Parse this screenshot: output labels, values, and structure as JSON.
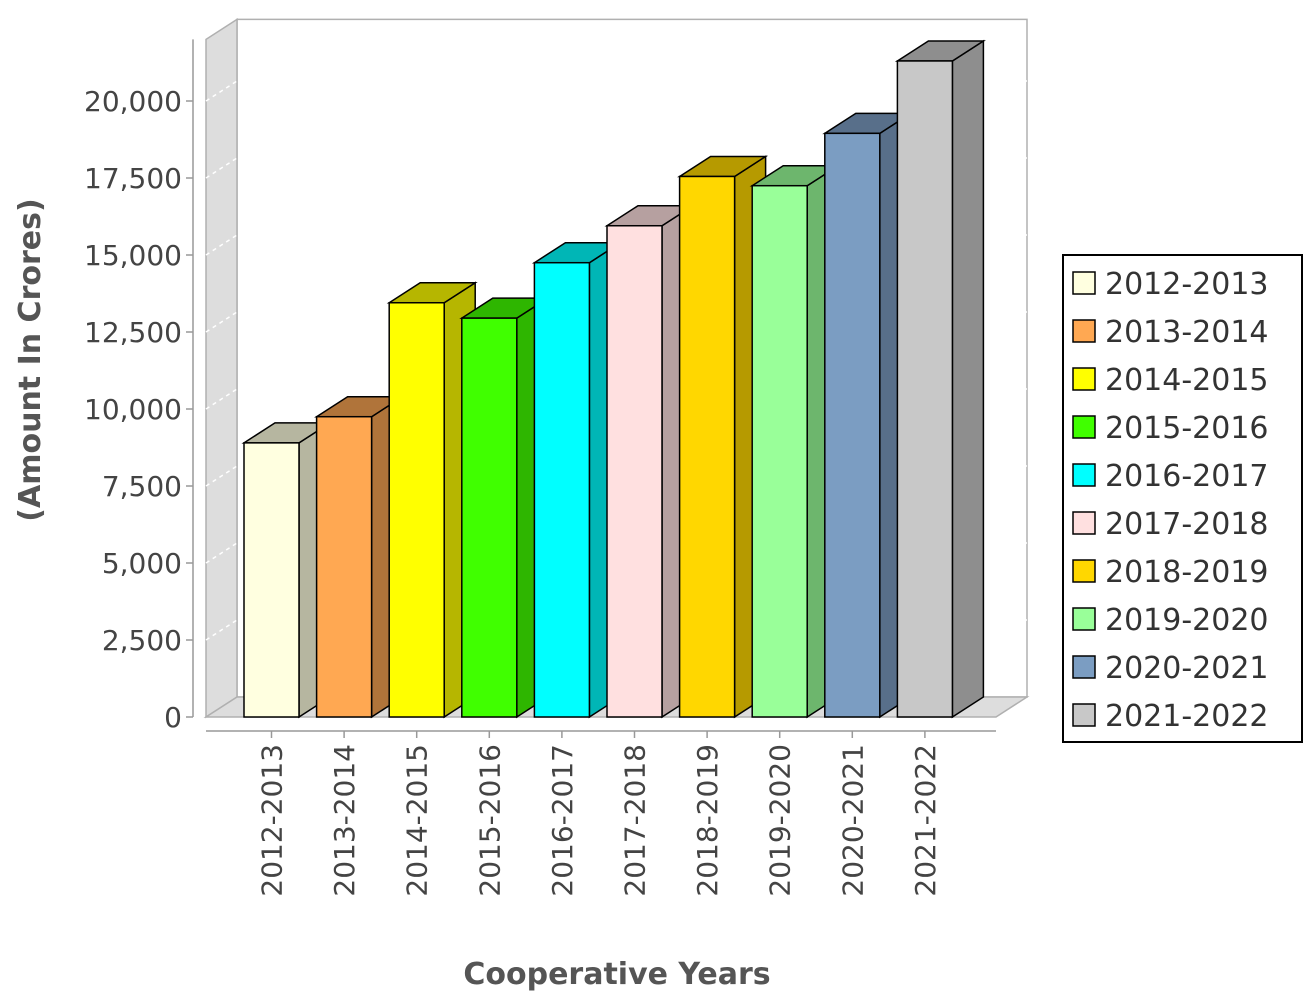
{
  "chart_data": {
    "type": "bar",
    "title": "",
    "xlabel": "Cooperative Years",
    "ylabel": "(Amount In Crores)",
    "categories": [
      "2012-2013",
      "2013-2014",
      "2014-2015",
      "2015-2016",
      "2016-2017",
      "2017-2018",
      "2018-2019",
      "2019-2020",
      "2020-2021",
      "2021-2022"
    ],
    "series": [
      {
        "values": [
          8900,
          9750,
          13450,
          12950,
          14750,
          15950,
          17550,
          17250,
          18950,
          21300
        ]
      }
    ],
    "ylim": [
      0,
      22000
    ],
    "yticks": [
      0,
      2500,
      5000,
      7500,
      10000,
      12500,
      15000,
      17500,
      20000
    ],
    "ytick_labels": [
      "0",
      "2,500",
      "5,000",
      "7,500",
      "10,000",
      "12,500",
      "15,000",
      "17,500",
      "20,000"
    ],
    "grid": true,
    "three_d": true,
    "legend": {
      "placement": "right",
      "entries": [
        "2012-2013",
        "2013-2014",
        "2014-2015",
        "2015-2016",
        "2016-2017",
        "2017-2018",
        "2018-2019",
        "2019-2020",
        "2020-2021",
        "2021-2022"
      ]
    },
    "colors": [
      "#FFFFE0",
      "#FFA852",
      "#FFFF00",
      "#40FF00",
      "#00FFFF",
      "#FFE0E0",
      "#FFD700",
      "#99FF99",
      "#7B9DC2",
      "#C8C8C8"
    ],
    "side_colors": [
      "#B6B6A0",
      "#B0743A",
      "#B6B600",
      "#2EB600",
      "#00B6B6",
      "#B6A0A0",
      "#B69A00",
      "#6DB66D",
      "#586F8A",
      "#8E8E8E"
    ]
  }
}
